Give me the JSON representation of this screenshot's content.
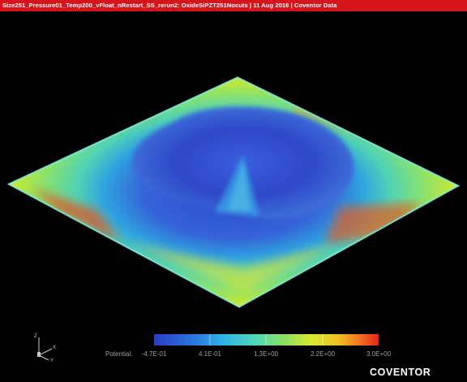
{
  "header": {
    "title": "Size251_Pressure01_Temp200_vFloat_nRestart_SS_rerun2: OxideSiPZT251Nocuts | 11 Aug 2016 | Coventor Data",
    "bar_color": "#d5141b"
  },
  "legend": {
    "title": "Potential:",
    "ticks": [
      "-4.7E-01",
      "4.1E-01",
      "1.3E+00",
      "2.2E+00",
      "3.0E+00"
    ],
    "colors": [
      "#2a3cc4",
      "#2e9ce8",
      "#55d8b4",
      "#cfe830",
      "#e8231a"
    ]
  },
  "axes_triad": {
    "labels": [
      "Z",
      "X",
      "Y"
    ]
  },
  "brand": {
    "text": "COVENTOR"
  }
}
